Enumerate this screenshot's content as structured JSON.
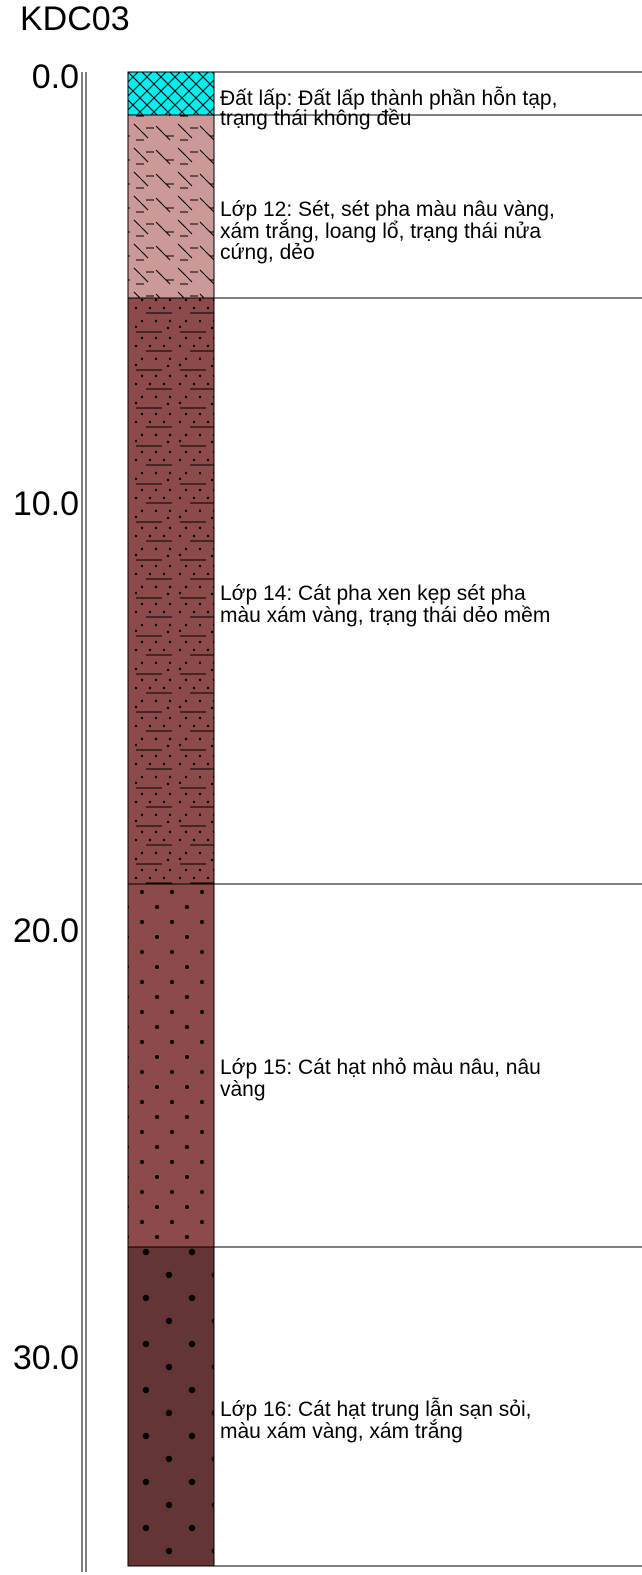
{
  "borehole": {
    "id": "KDC03",
    "depth_ticks": [
      "0.0",
      "10.0",
      "20.0",
      "30.0"
    ],
    "layers": [
      {
        "description": [
          "Đất lấp: Đất lấp thành phần hỗn tạp,",
          "trạng thái không đều"
        ],
        "fill_color": "#00eeee",
        "pattern": "crosshatch"
      },
      {
        "description": [
          "Lớp 12: Sét, sét pha màu nâu vàng,",
          "xám trắng, loang lổ, trạng thái nửa",
          "cứng, dẻo"
        ],
        "fill_color": "#cc9999",
        "pattern": "clay"
      },
      {
        "description": [
          "Lớp 14: Cát pha xen kẹp sét pha",
          "màu xám vàng, trạng thái dẻo mềm"
        ],
        "fill_color": "#8c4a4a",
        "pattern": "sandy-clay"
      },
      {
        "description": [
          "Lớp 15: Cát hạt nhỏ màu nâu, nâu",
          "vàng"
        ],
        "fill_color": "#8c4a4a",
        "pattern": "fine-sand"
      },
      {
        "description": [
          "Lớp 16: Cát hạt trung lẫn sạn sỏi,",
          "màu xám vàng, xám trắng"
        ],
        "fill_color": "#633535",
        "pattern": "coarse-sand"
      }
    ]
  }
}
